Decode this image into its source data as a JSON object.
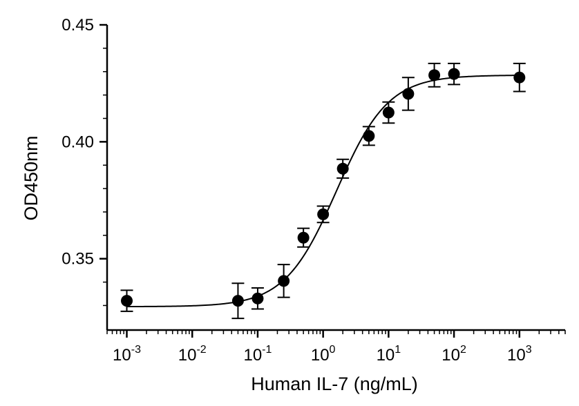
{
  "chart_data": {
    "type": "scatter",
    "xlabel": "Human IL-7 (ng/mL)",
    "ylabel": "OD450nm",
    "x_scale": "log10",
    "xlim": [
      0.0005,
      5000
    ],
    "ylim": [
      0.3195,
      0.45
    ],
    "x_ticks": [
      {
        "value": 0.001,
        "base": "10",
        "exp": "-3"
      },
      {
        "value": 0.01,
        "base": "10",
        "exp": "-2"
      },
      {
        "value": 0.1,
        "base": "10",
        "exp": "-1"
      },
      {
        "value": 1,
        "base": "10",
        "exp": "0"
      },
      {
        "value": 10,
        "base": "10",
        "exp": "1"
      },
      {
        "value": 100,
        "base": "10",
        "exp": "2"
      },
      {
        "value": 1000,
        "base": "10",
        "exp": "3"
      }
    ],
    "y_ticks": [
      {
        "value": 0.35,
        "label": "0.35"
      },
      {
        "value": 0.4,
        "label": "0.40"
      },
      {
        "value": 0.45,
        "label": "0.45"
      }
    ],
    "series": [
      {
        "points": [
          {
            "x": 0.001,
            "y": 0.332,
            "err": 0.0045
          },
          {
            "x": 0.05,
            "y": 0.332,
            "err": 0.0075
          },
          {
            "x": 0.1,
            "y": 0.333,
            "err": 0.0045
          },
          {
            "x": 0.25,
            "y": 0.3405,
            "err": 0.007
          },
          {
            "x": 0.5,
            "y": 0.359,
            "err": 0.004
          },
          {
            "x": 1,
            "y": 0.369,
            "err": 0.0035
          },
          {
            "x": 2,
            "y": 0.3885,
            "err": 0.004
          },
          {
            "x": 5,
            "y": 0.4025,
            "err": 0.004
          },
          {
            "x": 10,
            "y": 0.4125,
            "err": 0.0045
          },
          {
            "x": 20,
            "y": 0.4205,
            "err": 0.007
          },
          {
            "x": 50,
            "y": 0.4285,
            "err": 0.005
          },
          {
            "x": 100,
            "y": 0.429,
            "err": 0.0045
          },
          {
            "x": 1000,
            "y": 0.4275,
            "err": 0.006
          }
        ],
        "fit": {
          "model": "4PL",
          "bottom": 0.3295,
          "top": 0.4285,
          "ec50": 1.6,
          "hill": 1.1
        }
      }
    ],
    "colors": {
      "marker": "#000000",
      "axis": "#000000",
      "background": "#ffffff"
    },
    "grid": false
  }
}
